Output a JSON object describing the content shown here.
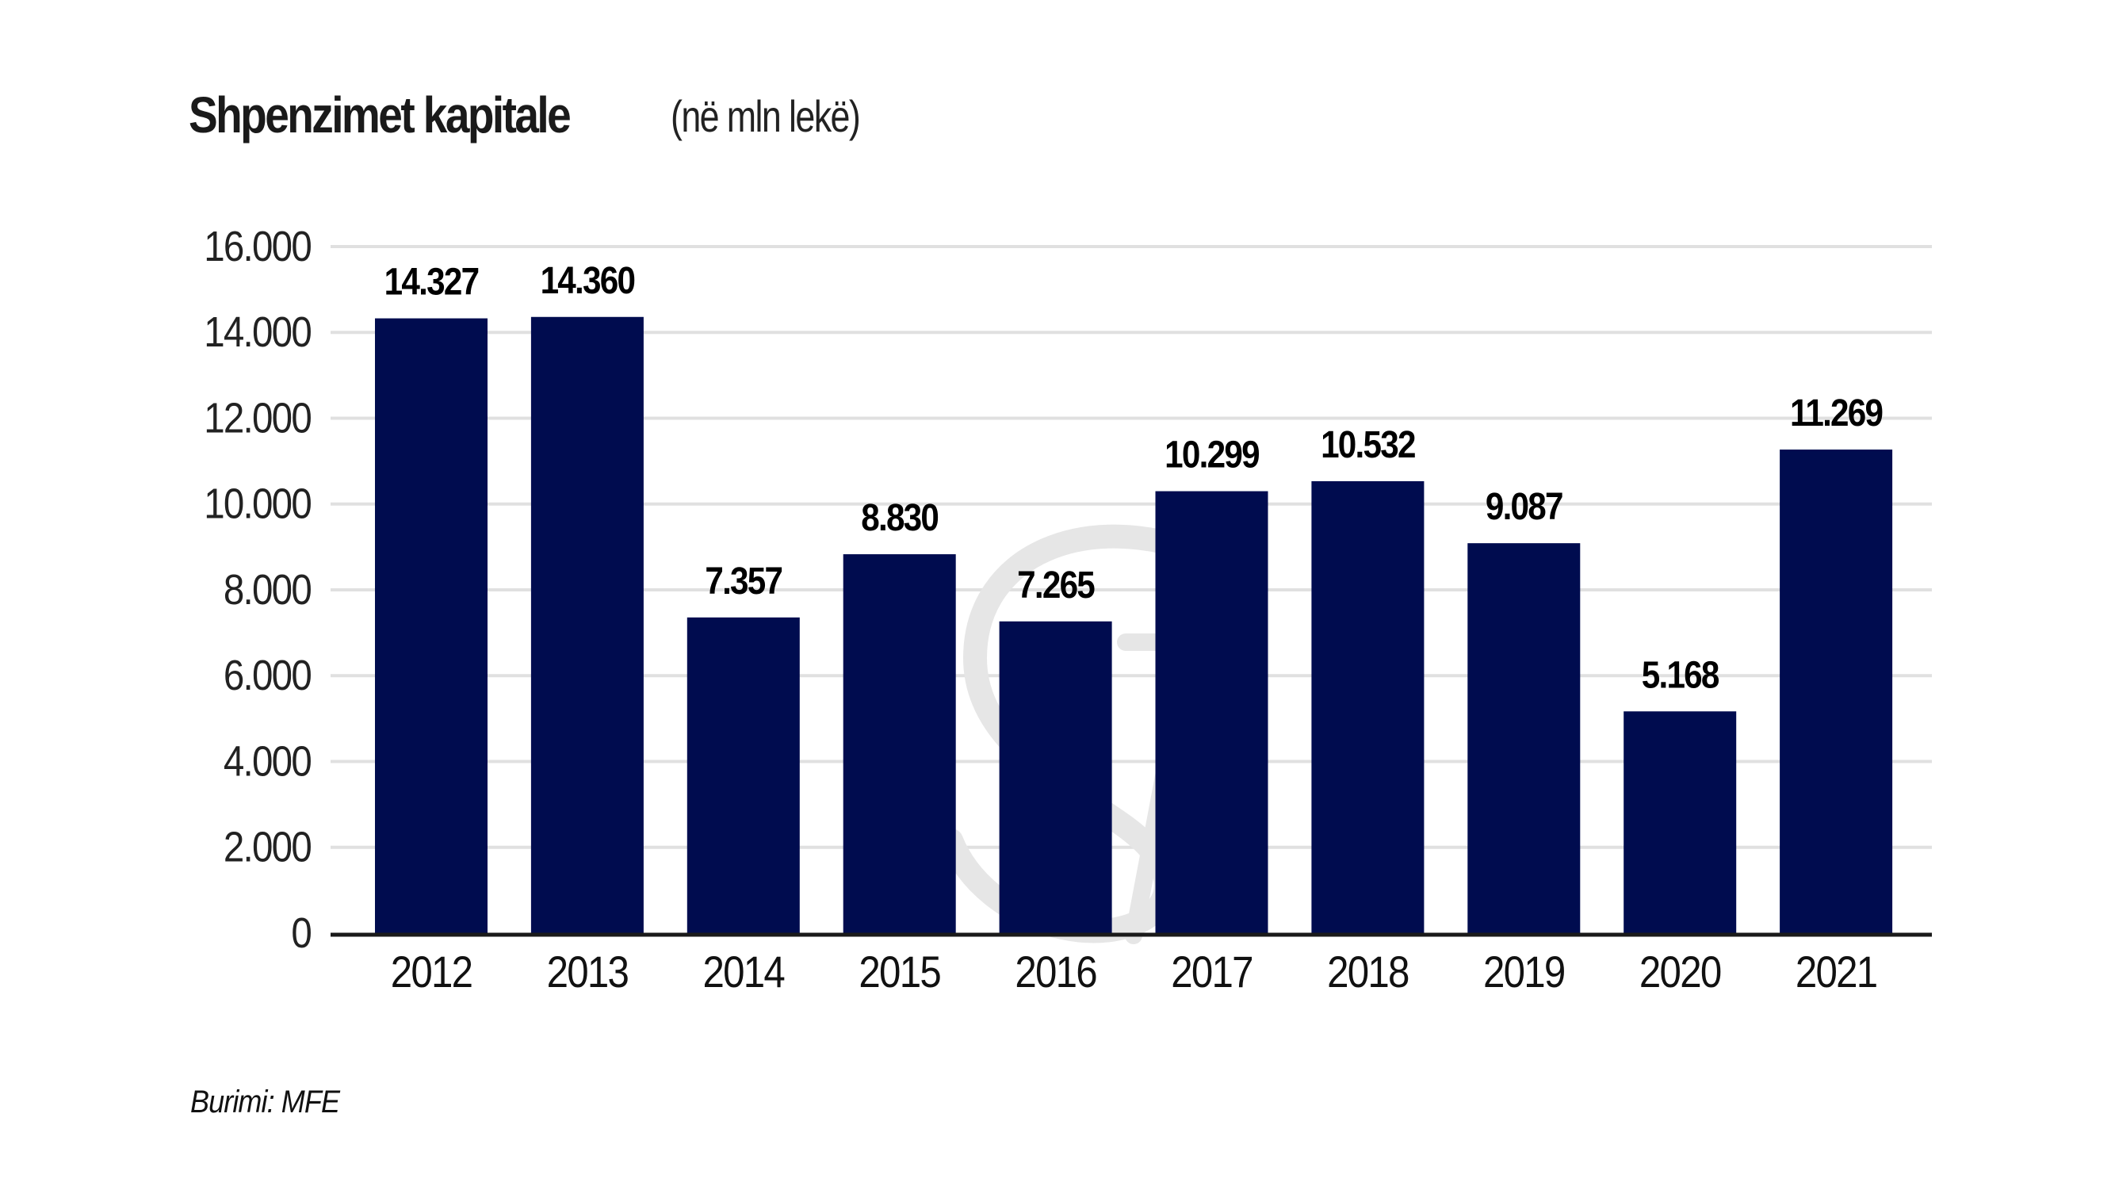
{
  "header": {
    "title": "Shpenzimet kapitale",
    "unit": "(në mln lekë)"
  },
  "footer": {
    "source": "Burimi: MFE"
  },
  "colors": {
    "bar": "#000c4f",
    "grid": "#e0e0e0",
    "axis": "#1a1a1a",
    "watermark": "#e6e6e6"
  },
  "chart_data": {
    "type": "bar",
    "title": "Shpenzimet kapitale (në mln lekë)",
    "xlabel": "",
    "ylabel": "",
    "categories": [
      "2012",
      "2013",
      "2014",
      "2015",
      "2016",
      "2017",
      "2018",
      "2019",
      "2020",
      "2021"
    ],
    "values": [
      14327,
      14360,
      7357,
      8830,
      7265,
      10299,
      10532,
      9087,
      5168,
      11269
    ],
    "value_labels": [
      "14.327",
      "14.360",
      "7.357",
      "8.830",
      "7.265",
      "10.299",
      "10.532",
      "9.087",
      "5.168",
      "11.269"
    ],
    "ylim": [
      0,
      16000
    ],
    "yticks": [
      0,
      2000,
      4000,
      6000,
      8000,
      10000,
      12000,
      14000,
      16000
    ],
    "ytick_labels": [
      "0",
      "2.000",
      "4.000",
      "6.000",
      "8.000",
      "10.000",
      "12.000",
      "14.000",
      "16.000"
    ],
    "grid": true,
    "legend": "none"
  }
}
